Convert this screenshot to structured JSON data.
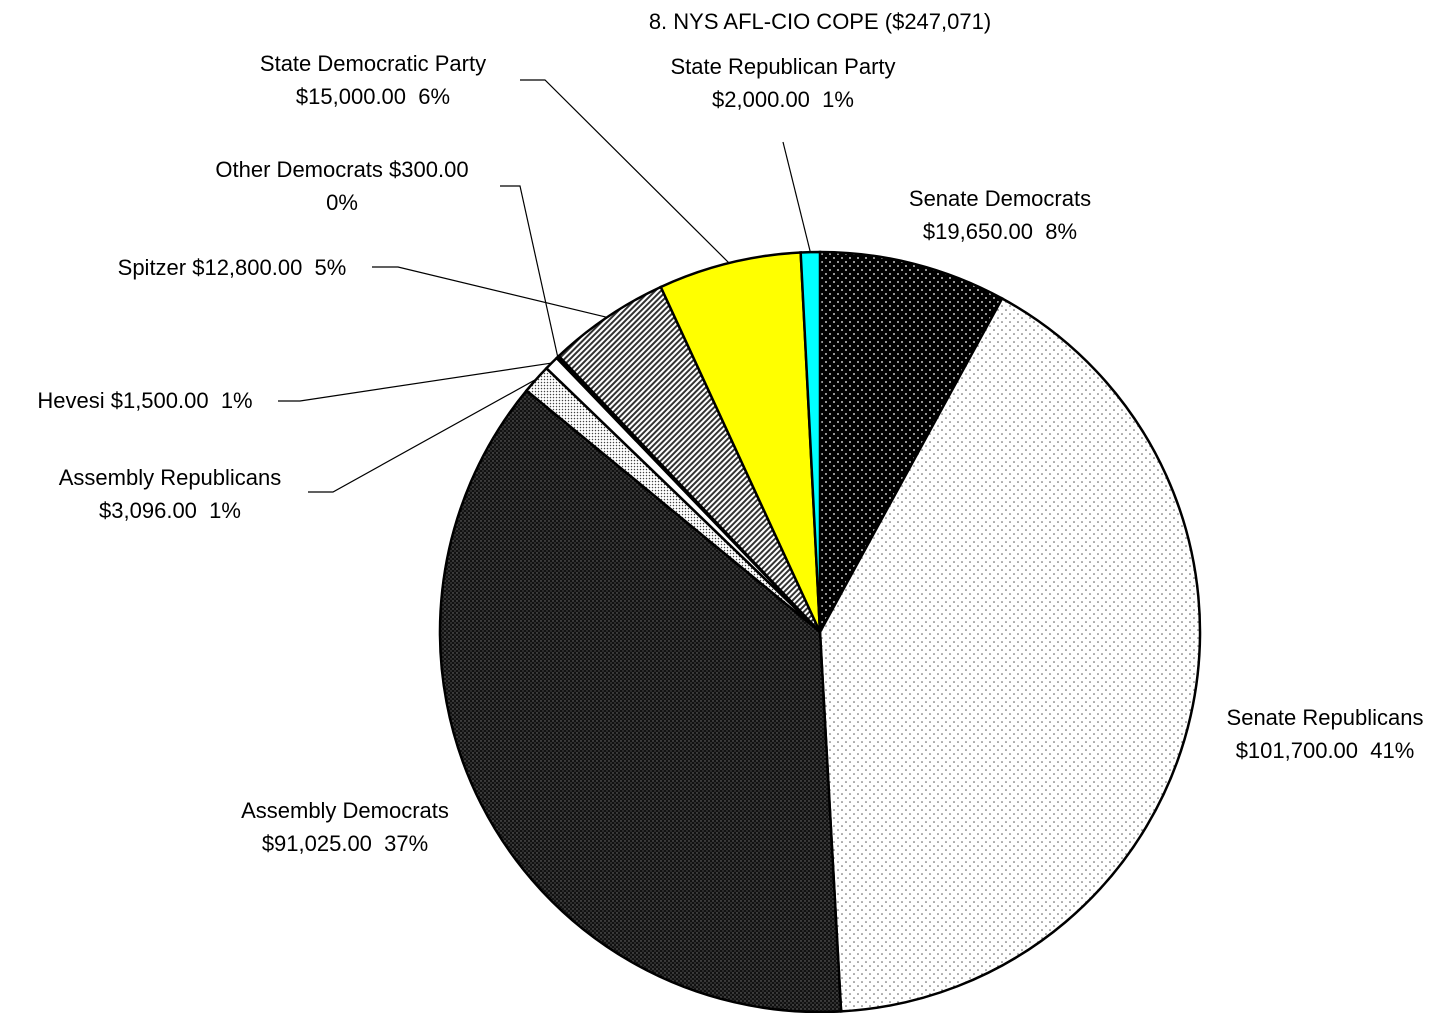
{
  "chart_data": {
    "type": "pie",
    "title": "8. NYS AFL-CIO COPE ($247,071)",
    "start_angle_deg": 0,
    "direction": "clockwise",
    "slices": [
      {
        "label": "Senate Democrats",
        "amount": "$19,650.00",
        "percent": "8%",
        "value": 19650,
        "fill": "dots-on-black"
      },
      {
        "label": "Senate Republicans",
        "amount": "$101,700.00",
        "percent": "41%",
        "value": 101700,
        "fill": "sparse-dots-on-white"
      },
      {
        "label": "Assembly Democrats",
        "amount": "$91,025.00",
        "percent": "37%",
        "value": 91025,
        "fill": "dense-dots-dark"
      },
      {
        "label": "Assembly Republicans",
        "amount": "$3,096.00",
        "percent": "1%",
        "value": 3096,
        "fill": "fine-dots-light"
      },
      {
        "label": "Hevesi",
        "amount": "$1,500.00",
        "percent": "1%",
        "value": 1500,
        "fill": "white"
      },
      {
        "label": "Other Democrats",
        "amount": "$300.00",
        "percent": "0%",
        "value": 300,
        "fill": "black"
      },
      {
        "label": "Spitzer",
        "amount": "$12,800.00",
        "percent": "5%",
        "value": 12800,
        "fill": "diagonal-hatch"
      },
      {
        "label": "State Democratic Party",
        "amount": "$15,000.00",
        "percent": "6%",
        "value": 15000,
        "fill": "#ffff00"
      },
      {
        "label": "State Republican Party",
        "amount": "$2,000.00",
        "percent": "1%",
        "value": 2000,
        "fill": "#00ffff"
      }
    ]
  }
}
